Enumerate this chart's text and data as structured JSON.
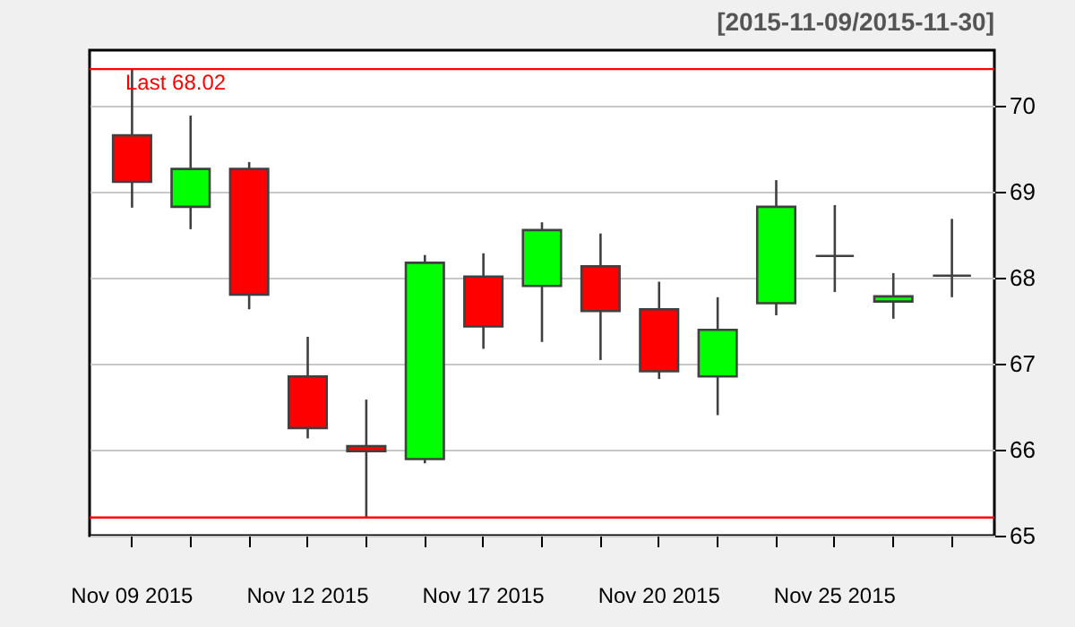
{
  "chart_data": {
    "type": "candlestick",
    "subtitle": "[2015-11-09/2015-11-30]",
    "categories": [
      "Nov 09 2015",
      null,
      null,
      "Nov 12 2015",
      null,
      null,
      "Nov 17 2015",
      null,
      null,
      "Nov 20 2015",
      null,
      null,
      "Nov 25 2015",
      null,
      null
    ],
    "ohlc": [
      [
        69.65,
        70.42,
        68.81,
        69.11
      ],
      [
        68.82,
        69.88,
        68.56,
        69.26
      ],
      [
        69.26,
        69.34,
        67.63,
        67.8
      ],
      [
        66.85,
        67.31,
        66.13,
        66.25
      ],
      [
        66.04,
        66.58,
        65.21,
        65.98
      ],
      [
        65.89,
        68.26,
        65.84,
        68.17
      ],
      [
        68.01,
        68.28,
        67.17,
        67.43
      ],
      [
        67.9,
        68.64,
        67.25,
        68.55
      ],
      [
        68.13,
        68.51,
        67.04,
        67.61
      ],
      [
        67.63,
        67.95,
        66.82,
        66.91
      ],
      [
        66.85,
        67.77,
        66.4,
        67.39
      ],
      [
        67.7,
        69.13,
        67.56,
        68.82
      ],
      [
        68.25,
        68.84,
        67.83,
        68.25
      ],
      [
        67.72,
        68.05,
        67.52,
        67.78
      ],
      [
        68.02,
        68.68,
        67.77,
        68.02
      ]
    ],
    "colors": [
      "#ff0000",
      "#00ff00",
      "#ff0000",
      "#ff0000",
      "#ff0000",
      "#00ff00",
      "#ff0000",
      "#00ff00",
      "#ff0000",
      "#ff0000",
      "#00ff00",
      "#00ff00",
      "#404040",
      "#00ff00",
      "#404040"
    ],
    "ylim": [
      65,
      70.64
    ],
    "yticks": [
      65,
      66,
      67,
      68,
      69,
      70
    ],
    "grid": "y",
    "ref_lines": [
      {
        "axis": "y",
        "value": 70.42,
        "color": "#ff0000"
      },
      {
        "axis": "y",
        "value": 65.21,
        "color": "#ff0000"
      }
    ],
    "annotations": [
      "Last 68.02"
    ]
  }
}
